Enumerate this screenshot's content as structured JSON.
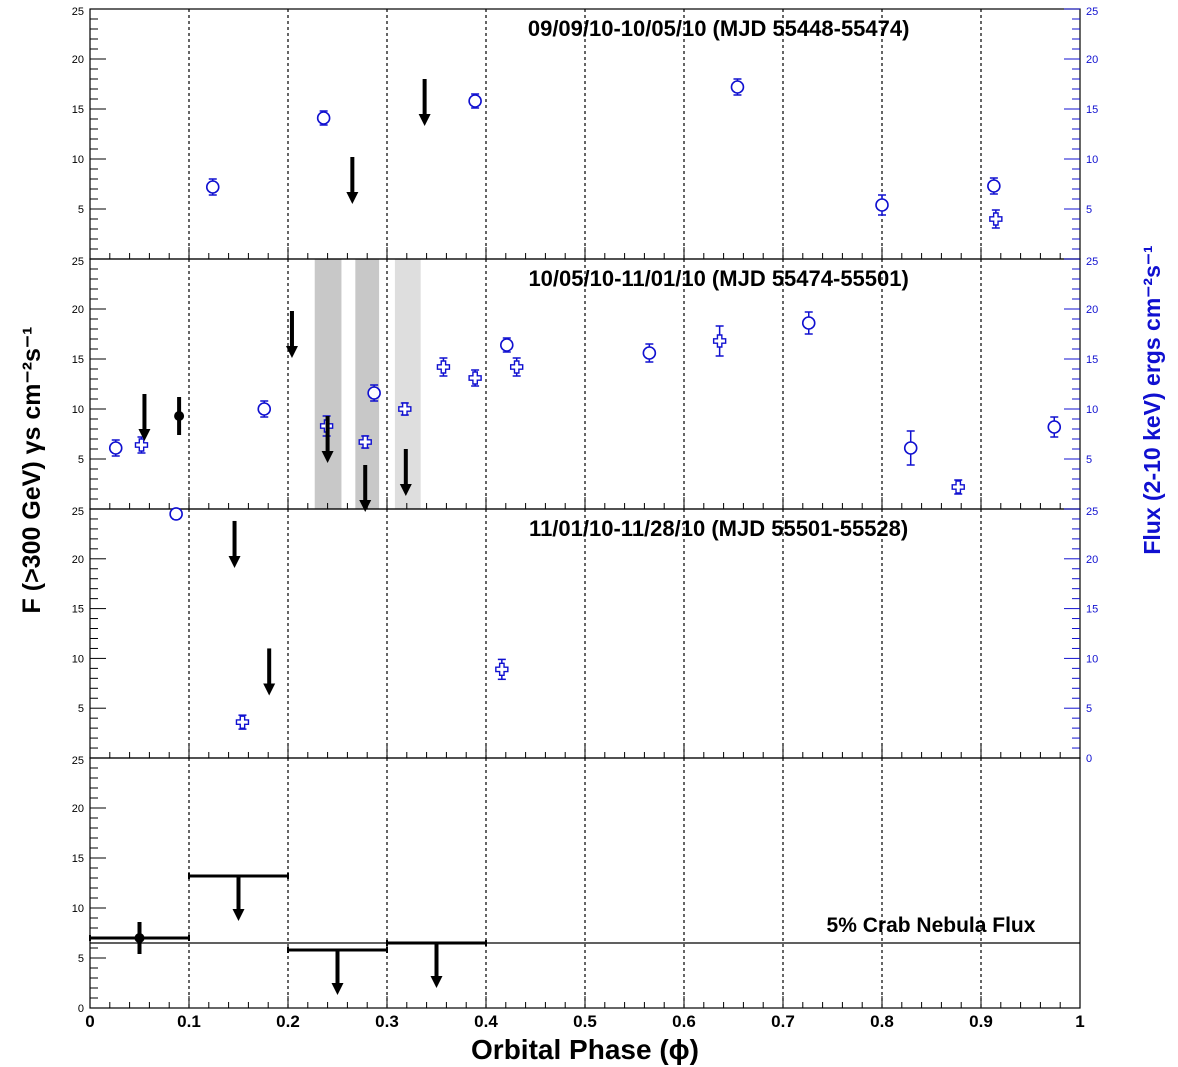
{
  "chart_data": {
    "type": "scatter",
    "x_label": "Orbital Phase (ϕ)",
    "y_label_left": "F (>300 GeV) γs cm⁻²s⁻¹",
    "y_label_right": "Flux (2-10 keV) ergs cm⁻²s⁻¹",
    "xlim": [
      0,
      1
    ],
    "x_ticks": [
      "0",
      "0.1",
      "0.2",
      "0.3",
      "0.4",
      "0.5",
      "0.6",
      "0.7",
      "0.8",
      "0.9",
      "1"
    ],
    "grid": "vertical dotted lines at every 0.1",
    "colors": {
      "vhe": "#000000",
      "xray": "#1010d0",
      "shade_dark": "#c8c8c8",
      "shade_light": "#dedede"
    },
    "panels": [
      {
        "title": "09/09/10-10/05/10 (MJD 55448-55474)",
        "ylim": [
          0,
          25
        ],
        "y_ticks": [
          "5",
          "10",
          "15",
          "20",
          "25"
        ],
        "right_ticks": [
          "5",
          "10",
          "15",
          "20",
          "25"
        ],
        "vhe_upper_limits": [
          {
            "x": 0.265,
            "y": 10.2
          },
          {
            "x": 0.338,
            "y": 18.0
          }
        ],
        "xray_circles": [
          {
            "x": 0.124,
            "y": 7.2,
            "err": 0.8
          },
          {
            "x": 0.236,
            "y": 14.1,
            "err": 0.7
          },
          {
            "x": 0.389,
            "y": 15.8,
            "err": 0.7
          },
          {
            "x": 0.654,
            "y": 17.2,
            "err": 0.8
          },
          {
            "x": 0.8,
            "y": 5.4,
            "err": 1.0
          },
          {
            "x": 0.913,
            "y": 7.3,
            "err": 0.8
          }
        ],
        "xray_crosses": [
          {
            "x": 0.915,
            "y": 4.0,
            "err": 0.9
          }
        ]
      },
      {
        "title": "10/05/10-11/01/10 (MJD 55474-55501)",
        "ylim": [
          0,
          25
        ],
        "y_ticks": [
          "5",
          "10",
          "15",
          "20",
          "25"
        ],
        "right_ticks": [
          "5",
          "10",
          "15",
          "20",
          "25"
        ],
        "shaded_regions": [
          {
            "x0": 0.227,
            "x1": 0.254,
            "shade": "dark"
          },
          {
            "x0": 0.268,
            "x1": 0.292,
            "shade": "dark"
          },
          {
            "x0": 0.308,
            "x1": 0.334,
            "shade": "light"
          }
        ],
        "vhe_points": [
          {
            "x": 0.09,
            "y": 9.3,
            "err": 1.9
          }
        ],
        "vhe_upper_limits": [
          {
            "x": 0.055,
            "y": 11.5
          },
          {
            "x": 0.204,
            "y": 19.8
          },
          {
            "x": 0.24,
            "y": 9.3
          },
          {
            "x": 0.278,
            "y": 4.4
          },
          {
            "x": 0.319,
            "y": 6.0
          }
        ],
        "xray_circles": [
          {
            "x": 0.026,
            "y": 6.1,
            "err": 0.8
          },
          {
            "x": 0.176,
            "y": 10.0,
            "err": 0.8
          },
          {
            "x": 0.287,
            "y": 11.6,
            "err": 0.8
          },
          {
            "x": 0.421,
            "y": 16.4,
            "err": 0.7
          },
          {
            "x": 0.565,
            "y": 15.6,
            "err": 0.9
          },
          {
            "x": 0.726,
            "y": 18.6,
            "err": 1.1
          },
          {
            "x": 0.829,
            "y": 6.1,
            "err": 1.7
          },
          {
            "x": 0.974,
            "y": 8.2,
            "err": 1.0
          }
        ],
        "xray_crosses": [
          {
            "x": 0.052,
            "y": 6.4,
            "err": 0.8
          },
          {
            "x": 0.239,
            "y": 8.3,
            "err": 1.0
          },
          {
            "x": 0.278,
            "y": 6.7,
            "err": 0.6
          },
          {
            "x": 0.318,
            "y": 10.0,
            "err": 0.6
          },
          {
            "x": 0.357,
            "y": 14.2,
            "err": 0.9
          },
          {
            "x": 0.389,
            "y": 13.1,
            "err": 0.8
          },
          {
            "x": 0.431,
            "y": 14.2,
            "err": 0.9
          },
          {
            "x": 0.636,
            "y": 16.8,
            "err": 1.5
          },
          {
            "x": 0.877,
            "y": 2.2,
            "err": 0.7
          }
        ]
      },
      {
        "title": "11/01/10-11/28/10 (MJD 55501-55528)",
        "ylim": [
          0,
          25
        ],
        "y_ticks": [
          "5",
          "10",
          "15",
          "20",
          "25"
        ],
        "right_ticks": [
          "0",
          "5",
          "10",
          "15",
          "20",
          "25"
        ],
        "vhe_upper_limits": [
          {
            "x": 0.146,
            "y": 23.8
          },
          {
            "x": 0.181,
            "y": 11.0
          }
        ],
        "xray_circles": [
          {
            "x": 0.087,
            "y": 24.5,
            "err": 0.5
          }
        ],
        "xray_crosses": [
          {
            "x": 0.154,
            "y": 3.6,
            "err": 0.7
          },
          {
            "x": 0.416,
            "y": 8.9,
            "err": 1.0
          }
        ]
      },
      {
        "title": "",
        "ylim": [
          0,
          25
        ],
        "y_ticks": [
          "0",
          "5",
          "10",
          "15",
          "20",
          "25"
        ],
        "annotation": "5% Crab Nebula Flux",
        "reference_line_y": 6.5,
        "binned_points": [
          {
            "x": 0.05,
            "x0": 0.0,
            "x1": 0.1,
            "y": 7.0,
            "err": 1.6
          }
        ],
        "binned_upper_limits": [
          {
            "x": 0.15,
            "x0": 0.1,
            "x1": 0.2,
            "y": 13.2
          },
          {
            "x": 0.25,
            "x0": 0.2,
            "x1": 0.3,
            "y": 5.8
          },
          {
            "x": 0.35,
            "x0": 0.3,
            "x1": 0.4,
            "y": 6.5
          }
        ]
      }
    ]
  }
}
